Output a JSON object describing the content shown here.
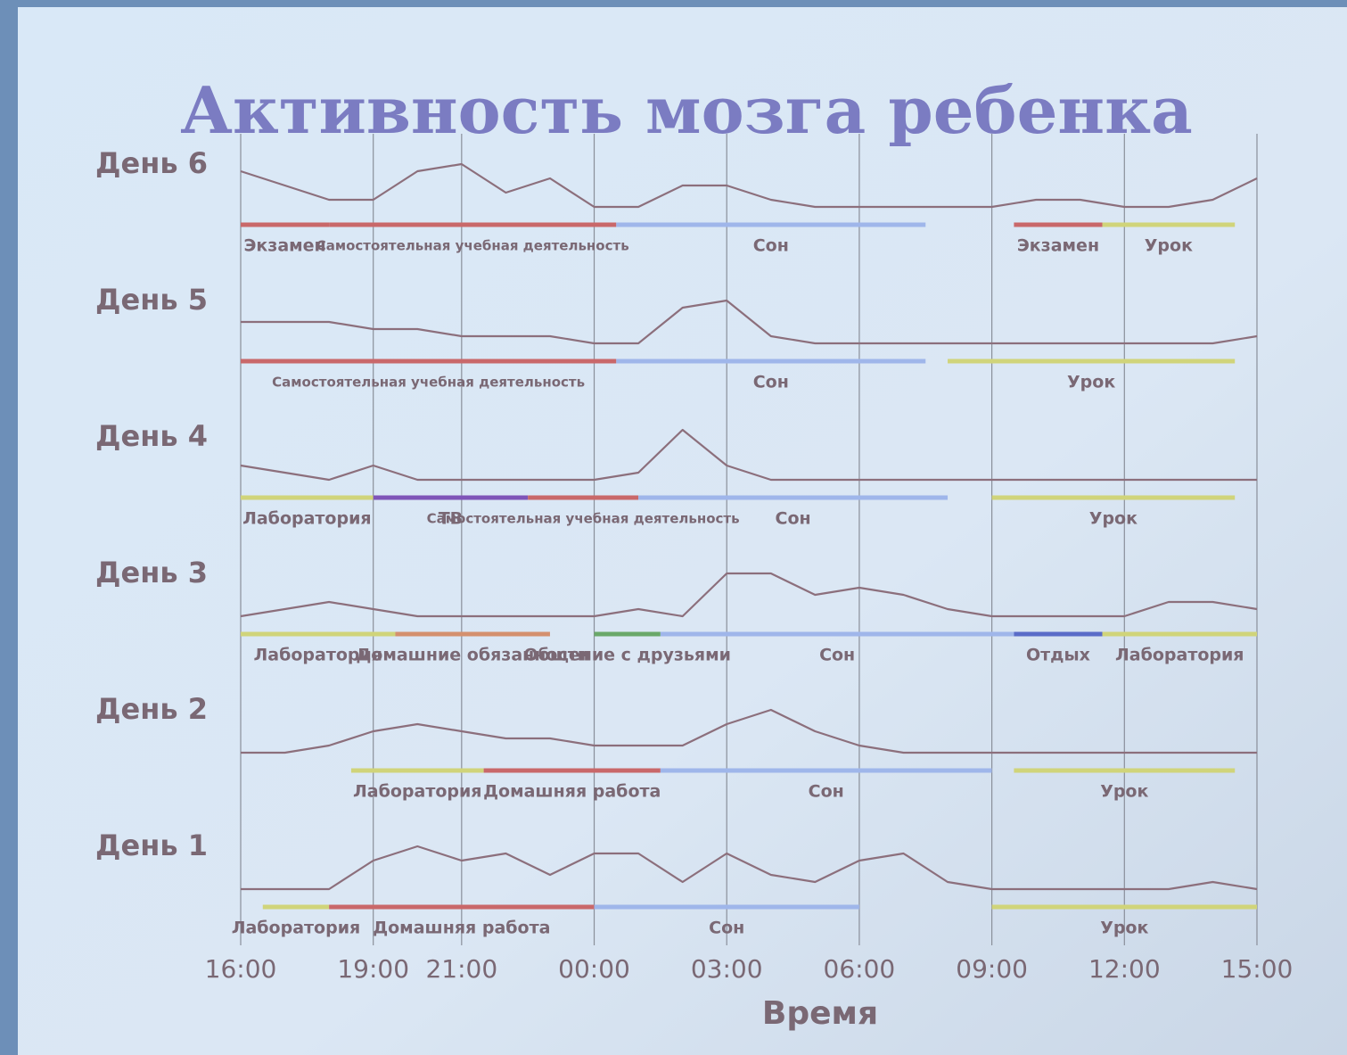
{
  "chart_data": {
    "type": "timeline",
    "title": "Активность мозга ребенка",
    "xlabel": "Время",
    "xlim": [
      0,
      23
    ],
    "xticks": [
      {
        "value": 0,
        "label": "16:00"
      },
      {
        "value": 3,
        "label": "19:00"
      },
      {
        "value": 5,
        "label": "21:00"
      },
      {
        "value": 8,
        "label": "00:00"
      },
      {
        "value": 11,
        "label": "03:00"
      },
      {
        "value": 14,
        "label": "06:00"
      },
      {
        "value": 17,
        "label": "09:00"
      },
      {
        "value": 20,
        "label": "12:00"
      },
      {
        "value": 23,
        "label": "15:00"
      }
    ],
    "ylim": [
      0,
      10
    ],
    "line_color": "#8c6f7c",
    "x": [
      0,
      1,
      2,
      3,
      4,
      5,
      6,
      7,
      8,
      9,
      10,
      11,
      12,
      13,
      14,
      15,
      16,
      17,
      18,
      19,
      20,
      21,
      22,
      23
    ],
    "rows": [
      {
        "name": "День 6",
        "values": [
          6,
          4,
          2,
          2,
          6,
          7,
          3,
          5,
          1,
          1,
          4,
          4,
          2,
          1,
          1,
          1,
          1,
          1,
          2,
          2,
          1,
          1,
          2,
          5
        ],
        "segments": [
          {
            "label": "Экзамен",
            "color": "#c9686a",
            "start": 0,
            "end": 2
          },
          {
            "label": "Самостоятельная учебная деятельность",
            "color": "#c9686a",
            "start": 2,
            "end": 8.5
          },
          {
            "label": "Сон",
            "color": "#9fb6ea",
            "start": 8.5,
            "end": 15.5
          },
          {
            "label": "Экзамен",
            "color": "#c9686a",
            "start": 17.5,
            "end": 19.5
          },
          {
            "label": "Урок",
            "color": "#d0d47a",
            "start": 19.5,
            "end": 22.5
          }
        ]
      },
      {
        "name": "День 5",
        "values": [
          4,
          4,
          4,
          3,
          3,
          2,
          2,
          2,
          1,
          1,
          6,
          7,
          2,
          1,
          1,
          1,
          1,
          1,
          1,
          1,
          1,
          1,
          1,
          2
        ],
        "segments": [
          {
            "label": "Самостоятельная учебная деятельность",
            "color": "#c9686a",
            "start": 0,
            "end": 8.5
          },
          {
            "label": "Сон",
            "color": "#9fb6ea",
            "start": 8.5,
            "end": 15.5
          },
          {
            "label": "Урок",
            "color": "#d0d47a",
            "start": 16,
            "end": 22.5
          }
        ]
      },
      {
        "name": "День 4",
        "values": [
          3,
          2,
          1,
          3,
          1,
          1,
          1,
          1,
          1,
          2,
          8,
          3,
          1,
          1,
          1,
          1,
          1,
          1,
          1,
          1,
          1,
          1,
          1,
          1
        ],
        "segments": [
          {
            "label": "Лаборатория",
            "color": "#d0d47a",
            "start": 0,
            "end": 3
          },
          {
            "label": "ТВ",
            "color": "#7f55b8",
            "start": 3,
            "end": 6.5
          },
          {
            "label": "Самостоятельная учебная деятельность",
            "color": "#c9686a",
            "start": 6.5,
            "end": 9
          },
          {
            "label": "Сон",
            "color": "#9fb6ea",
            "start": 9,
            "end": 16
          },
          {
            "label": "Урок",
            "color": "#d0d47a",
            "start": 17,
            "end": 22.5
          }
        ]
      },
      {
        "name": "День 3",
        "values": [
          1,
          2,
          3,
          2,
          1,
          1,
          1,
          1,
          1,
          2,
          1,
          7,
          7,
          4,
          5,
          4,
          2,
          1,
          1,
          1,
          1,
          3,
          3,
          2
        ],
        "segments": [
          {
            "label": "Лаборатория",
            "color": "#d0d47a",
            "start": 0,
            "end": 3.5
          },
          {
            "label": "Домашние обязанности",
            "color": "#d4906e",
            "start": 3.5,
            "end": 7
          },
          {
            "label": "Общение с друзьями",
            "color": "#6aa86a",
            "start": 8,
            "end": 9.5
          },
          {
            "label": "Сон",
            "color": "#9fb6ea",
            "start": 9.5,
            "end": 17.5
          },
          {
            "label": "Отдых",
            "color": "#5a6cc8",
            "start": 17.5,
            "end": 19.5
          },
          {
            "label": "Лаборатория",
            "color": "#d0d47a",
            "start": 19.5,
            "end": 23
          }
        ]
      },
      {
        "name": "День 2",
        "values": [
          1,
          1,
          2,
          4,
          5,
          4,
          3,
          3,
          2,
          2,
          2,
          5,
          7,
          4,
          2,
          1,
          1,
          1,
          1,
          1,
          1,
          1,
          1,
          1
        ],
        "segments": [
          {
            "label": "Лаборатория",
            "color": "#d0d47a",
            "start": 2.5,
            "end": 5.5
          },
          {
            "label": "Домашняя работа",
            "color": "#c9686a",
            "start": 5.5,
            "end": 9.5
          },
          {
            "label": "Сон",
            "color": "#9fb6ea",
            "start": 9.5,
            "end": 17
          },
          {
            "label": "Урок",
            "color": "#d0d47a",
            "start": 17.5,
            "end": 22.5
          }
        ]
      },
      {
        "name": "День 1",
        "values": [
          1,
          1,
          1,
          5,
          7,
          5,
          6,
          3,
          6,
          6,
          2,
          6,
          3,
          2,
          5,
          6,
          2,
          1,
          1,
          1,
          1,
          1,
          2,
          1
        ],
        "segments": [
          {
            "label": "Лаборатория",
            "color": "#d0d47a",
            "start": 0.5,
            "end": 2
          },
          {
            "label": "Домашняя работа",
            "color": "#c9686a",
            "start": 2,
            "end": 8
          },
          {
            "label": "Сон",
            "color": "#9fb6ea",
            "start": 8,
            "end": 14
          },
          {
            "label": "Урок",
            "color": "#d0d47a",
            "start": 17,
            "end": 23
          }
        ]
      }
    ]
  }
}
